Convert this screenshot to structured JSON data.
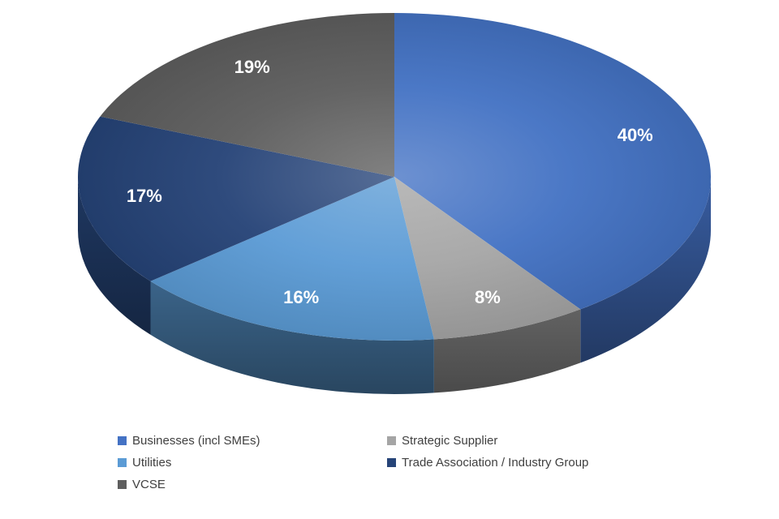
{
  "chart_data": {
    "type": "pie",
    "style": "3d",
    "title": "",
    "direction": "clockwise",
    "start_angle_deg": 0,
    "legend_position": "bottom",
    "background": "#FFFFFF",
    "data_label_color": "#FFFFFF",
    "legend_text_color": "#404040",
    "series": [
      {
        "label": "Businesses (incl SMEs)",
        "value": 40,
        "display": "40%",
        "color": "#4472C4"
      },
      {
        "label": "Strategic Supplier",
        "value": 8,
        "display": "8%",
        "color": "#A5A5A5"
      },
      {
        "label": "Utilities",
        "value": 16,
        "display": "16%",
        "color": "#5B9BD5"
      },
      {
        "label": "Trade Association / Industry Group",
        "value": 17,
        "display": "17%",
        "color": "#264478"
      },
      {
        "label": "VCSE",
        "value": 19,
        "display": "19%",
        "color": "#5E5E5E"
      }
    ]
  }
}
